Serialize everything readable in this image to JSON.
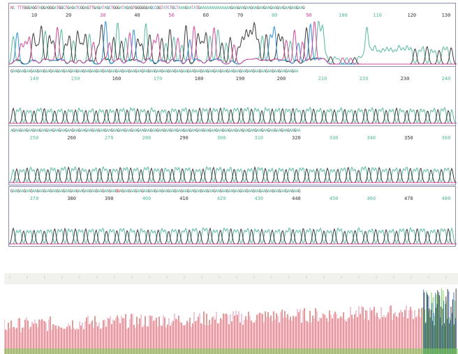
{
  "panels": [
    {
      "sequence": "NC TTTGGGAGGTAGGAGGGATGGCTGAGATCGGAGTTGAGATAGCTGGGATAGAGTGGGGGGAGCCGGTATCTGCTAAAGAATATGAAAAAAAAAAAAAAGAAGAAGAAGAAGAAGAAGAAGAAGAAGAAGAAG",
      "ticks": [
        "10",
        "20",
        "30",
        "40",
        "50",
        "60",
        "70",
        "80",
        "90",
        "100",
        "110",
        "120",
        "130"
      ],
      "tick_colors": [
        "#3a3a3a",
        "#3a3a3a",
        "#d24a9a",
        "#3a3a3a",
        "#d24a9a",
        "#3a3a3a",
        "#3a3a3a",
        "#57b99f",
        "#d24a9a",
        "#57b99f",
        "#57b99f",
        "#3a3a3a",
        "#3a3a3a"
      ]
    },
    {
      "sequence": "GAAGAAGAAGAAGAAGAAGAAGAAGAAGAAGAAGAAGAAGAAGAAGAAGAAGAAGAAGAAGAAGAAGAAGAAGAAGAAGAAGAAGAAGAAGAAGAAGAAGAAGAAGAAGAAGAAGAAGAAGAAGAAGAAGAA",
      "ticks": [
        "140",
        "150",
        "160",
        "170",
        "180",
        "190",
        "200",
        "210",
        "220",
        "230",
        "240"
      ],
      "tick_colors": [
        "#57b99f",
        "#57b99f",
        "#3a3a3a",
        "#57b99f",
        "#3a3a3a",
        "#3a3a3a",
        "#3a3a3a",
        "#57b99f",
        "#57b99f",
        "#3a3a3a",
        "#57b99f"
      ]
    },
    {
      "sequence": "AGAAGAAGAAGAAGAAGAAGAAGAAGAAGAAGAAGAAGAAGAAGAAGAAGAAGAAGAAGAAGAAGAAGAAGAAGAAGAAGAAGAAGAAGAAGAAGAAGAAGAAGAAGAAGAAGAAGAAGAAGAAGAAGAAGAA",
      "ticks": [
        "250",
        "260",
        "270",
        "280",
        "290",
        "300",
        "310",
        "320",
        "330",
        "340",
        "350",
        "360"
      ],
      "tick_colors": [
        "#57b99f",
        "#3a3a3a",
        "#57b99f",
        "#57b99f",
        "#3a3a3a",
        "#57b99f",
        "#57b99f",
        "#3a3a3a",
        "#57b99f",
        "#57b99f",
        "#3a3a3a",
        "#57b99f"
      ]
    },
    {
      "sequence": "GAAGAAGAAGAAGAAGAAGAAGAAGAAGAAGAAGAAGAAGAAGAAGAAGNAGAAGAAGAAGAAGAAGAAGAAGAAGAAGAAGAAGAAGAAGAAGAAGAAGAAGAAGAAGAAGAAGAAGAAGAAGAAGAAGAAG",
      "ticks": [
        "370",
        "380",
        "390",
        "400",
        "410",
        "420",
        "430",
        "440",
        "450",
        "460",
        "470",
        "480"
      ],
      "tick_colors": [
        "#57b99f",
        "#3a3a3a",
        "#3a3a3a",
        "#57b99f",
        "#3a3a3a",
        "#57b99f",
        "#57b99f",
        "#3a3a3a",
        "#57b99f",
        "#57b99f",
        "#3a3a3a",
        "#57b99f"
      ]
    }
  ],
  "colors": {
    "A": "#57b99f",
    "G": "#3a3a3a",
    "C": "#2f8fd8",
    "T": "#d24a9a",
    "N": "#e04040",
    "panel_border": "#8a8fae",
    "overview_red": "#d9534f",
    "overview_pink": "#e8a0b8",
    "overview_green": "#7ccf5a",
    "overview_blue": "#4a78c8"
  },
  "chart_data": {
    "type": "line",
    "description_of_values": "DNA sequencing chromatogram; four fluorescence channels",
    "series": [
      {
        "name": "A",
        "color": "#57b99f"
      },
      {
        "name": "G",
        "color": "#3a3a3a"
      },
      {
        "name": "C",
        "color": "#2f8fd8"
      },
      {
        "name": "T",
        "color": "#d24a9a"
      }
    ],
    "x_ticks": [
      "10",
      "20",
      "30",
      "40",
      "50",
      "60",
      "70",
      "80",
      "90",
      "100",
      "110",
      "120",
      "130",
      "140",
      "150",
      "160",
      "170",
      "180",
      "190",
      "200",
      "210",
      "220",
      "230",
      "240",
      "250",
      "260",
      "270",
      "280",
      "290",
      "300",
      "310",
      "320",
      "330",
      "340",
      "350",
      "360",
      "370",
      "380",
      "390",
      "400",
      "410",
      "420",
      "430",
      "440",
      "450",
      "460",
      "470",
      "480"
    ],
    "grid": false
  }
}
